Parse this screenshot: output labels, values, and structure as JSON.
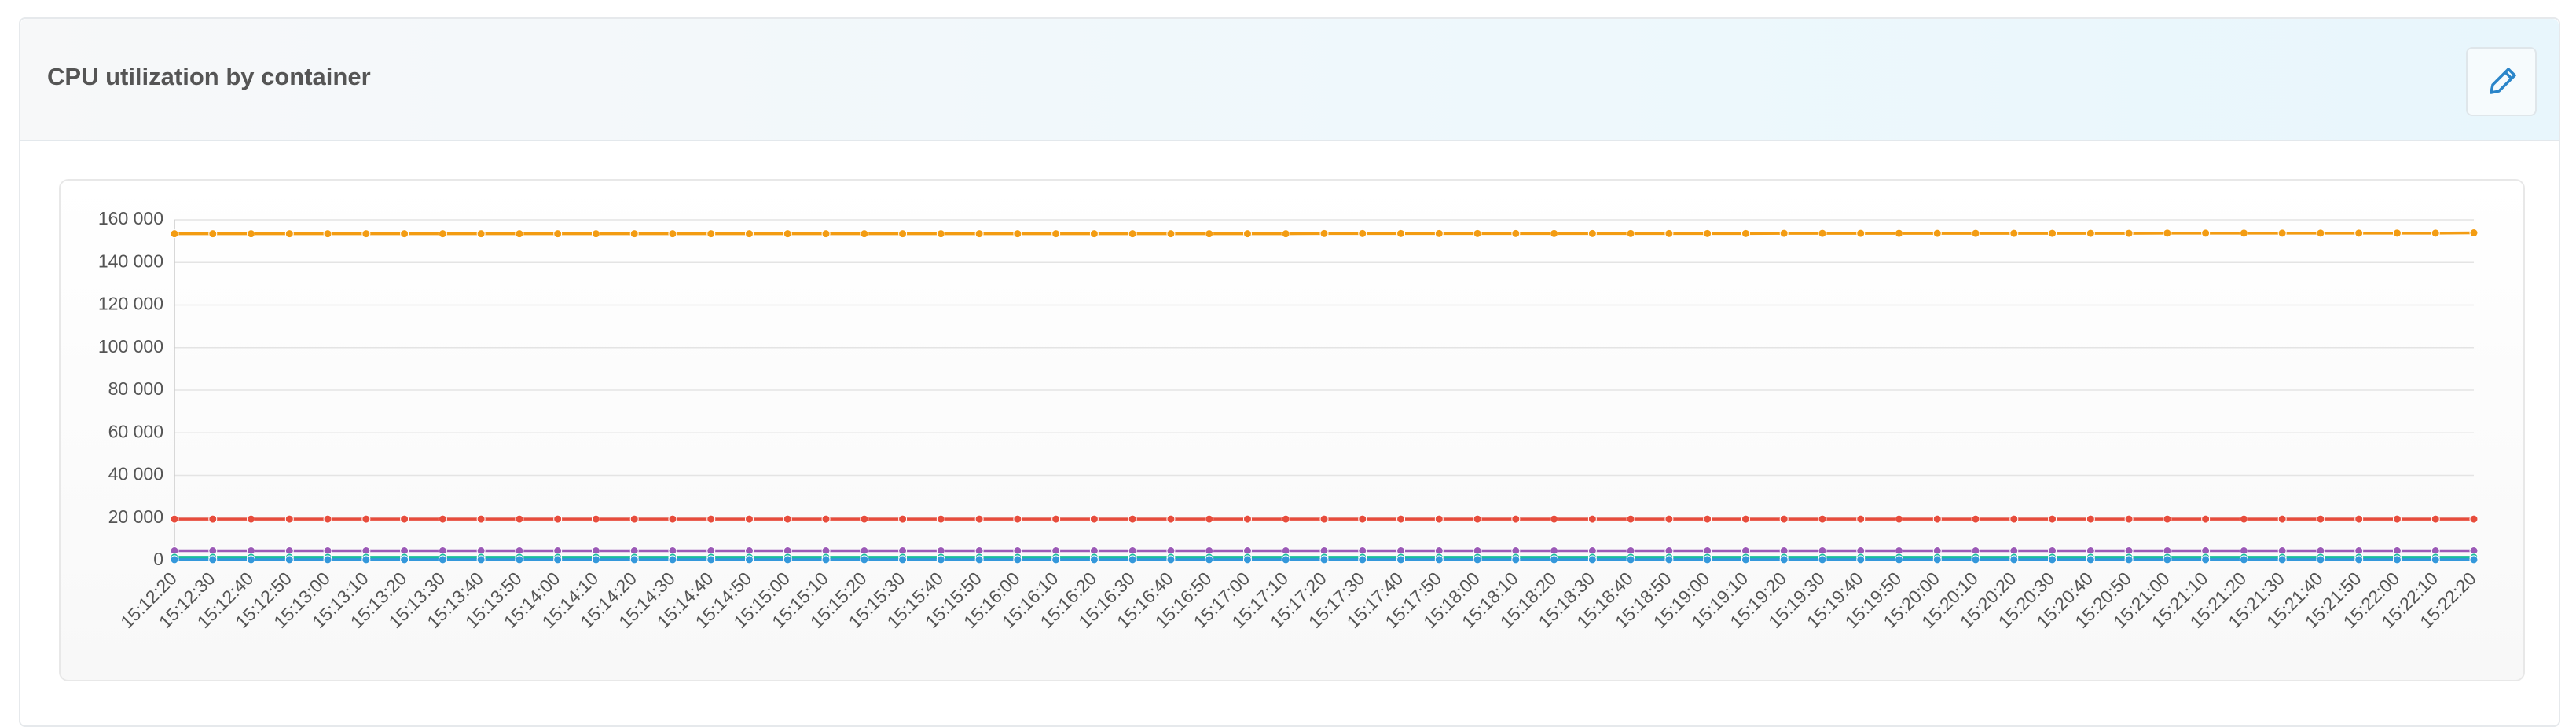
{
  "header": {
    "title": "CPU utilization by container"
  },
  "chart_data": {
    "type": "line",
    "categories": [
      "15:12:20",
      "15:12:30",
      "15:12:40",
      "15:12:50",
      "15:13:00",
      "15:13:10",
      "15:13:20",
      "15:13:30",
      "15:13:40",
      "15:13:50",
      "15:14:00",
      "15:14:10",
      "15:14:20",
      "15:14:30",
      "15:14:40",
      "15:14:50",
      "15:15:00",
      "15:15:10",
      "15:15:20",
      "15:15:30",
      "15:15:40",
      "15:15:50",
      "15:16:00",
      "15:16:10",
      "15:16:20",
      "15:16:30",
      "15:16:40",
      "15:16:50",
      "15:17:00",
      "15:17:10",
      "15:17:20",
      "15:17:30",
      "15:17:40",
      "15:17:50",
      "15:18:00",
      "15:18:10",
      "15:18:20",
      "15:18:30",
      "15:18:40",
      "15:18:50",
      "15:19:00",
      "15:19:10",
      "15:19:20",
      "15:19:30",
      "15:19:40",
      "15:19:50",
      "15:20:00",
      "15:20:10",
      "15:20:20",
      "15:20:30",
      "15:20:40",
      "15:20:50",
      "15:21:00",
      "15:21:10",
      "15:21:20",
      "15:21:30",
      "15:21:40",
      "15:21:50",
      "15:22:00",
      "15:22:10",
      "15:22:20"
    ],
    "series": [
      {
        "color": "#f39c12",
        "values": [
          153500,
          153500,
          153500,
          153500,
          153500,
          153500,
          153500,
          153500,
          153500,
          153500,
          153500,
          153500,
          153500,
          153500,
          153500,
          153500,
          153500,
          153500,
          153500,
          153500,
          153500,
          153500,
          153500,
          153500,
          153500,
          153500,
          153500,
          153500,
          153500,
          153500,
          153600,
          153600,
          153600,
          153600,
          153600,
          153600,
          153600,
          153600,
          153600,
          153600,
          153600,
          153600,
          153700,
          153700,
          153700,
          153700,
          153700,
          153700,
          153700,
          153700,
          153700,
          153700,
          153800,
          153800,
          153800,
          153800,
          153800,
          153800,
          153800,
          153800,
          153900
        ]
      },
      {
        "color": "#e74c3c",
        "values": [
          19500,
          19500,
          19500,
          19500,
          19500,
          19500,
          19500,
          19500,
          19500,
          19500,
          19500,
          19500,
          19500,
          19500,
          19500,
          19500,
          19500,
          19500,
          19500,
          19500,
          19500,
          19500,
          19500,
          19500,
          19500,
          19500,
          19500,
          19500,
          19500,
          19500,
          19500,
          19500,
          19500,
          19500,
          19500,
          19500,
          19500,
          19500,
          19500,
          19500,
          19500,
          19500,
          19500,
          19500,
          19500,
          19500,
          19500,
          19500,
          19500,
          19500,
          19500,
          19500,
          19500,
          19500,
          19500,
          19500,
          19500,
          19500,
          19500,
          19500,
          19500
        ]
      },
      {
        "color": "#9b59b6",
        "values": [
          4600,
          4600,
          4600,
          4600,
          4600,
          4600,
          4600,
          4600,
          4600,
          4600,
          4600,
          4600,
          4600,
          4600,
          4600,
          4600,
          4600,
          4600,
          4600,
          4600,
          4600,
          4600,
          4600,
          4600,
          4600,
          4600,
          4600,
          4600,
          4600,
          4600,
          4600,
          4600,
          4600,
          4600,
          4600,
          4600,
          4600,
          4600,
          4600,
          4600,
          4600,
          4600,
          4600,
          4600,
          4600,
          4600,
          4600,
          4600,
          4600,
          4600,
          4600,
          4600,
          4600,
          4600,
          4600,
          4600,
          4600,
          4600,
          4600,
          4600,
          4600
        ]
      },
      {
        "color": "#1abc9c",
        "values": [
          1500,
          1500,
          1500,
          1500,
          1500,
          1500,
          1500,
          1500,
          1500,
          1500,
          1500,
          1500,
          1500,
          1500,
          1500,
          1500,
          1500,
          1500,
          1500,
          1500,
          1500,
          1500,
          1500,
          1500,
          1500,
          1500,
          1500,
          1500,
          1500,
          1500,
          1500,
          1500,
          1500,
          1500,
          1500,
          1500,
          1500,
          1500,
          1500,
          1500,
          1500,
          1500,
          1500,
          1500,
          1500,
          1500,
          1500,
          1500,
          1500,
          1500,
          1500,
          1500,
          1500,
          1500,
          1500,
          1500,
          1500,
          1500,
          1500,
          1500,
          1500
        ]
      },
      {
        "color": "#3498db",
        "values": [
          400,
          400,
          400,
          400,
          400,
          400,
          400,
          400,
          400,
          400,
          400,
          400,
          400,
          400,
          400,
          400,
          400,
          400,
          400,
          400,
          400,
          400,
          400,
          400,
          400,
          400,
          400,
          400,
          400,
          400,
          400,
          400,
          400,
          400,
          400,
          400,
          400,
          400,
          400,
          400,
          400,
          400,
          400,
          400,
          400,
          400,
          400,
          400,
          400,
          400,
          400,
          400,
          400,
          400,
          400,
          400,
          400,
          400,
          400,
          400,
          400
        ]
      }
    ],
    "ylim": [
      0,
      160000
    ],
    "yticks": [
      0,
      {
        "value": 20000,
        "label": "20 000"
      },
      {
        "value": 40000,
        "label": "40 000"
      },
      {
        "value": 60000,
        "label": "60 000"
      },
      {
        "value": 80000,
        "label": "80 000"
      },
      {
        "value": 100000,
        "label": "100 000"
      },
      {
        "value": 120000,
        "label": "120 000"
      },
      {
        "value": 140000,
        "label": "140 000"
      },
      {
        "value": 160000,
        "label": "160 000"
      }
    ],
    "grid": true
  }
}
